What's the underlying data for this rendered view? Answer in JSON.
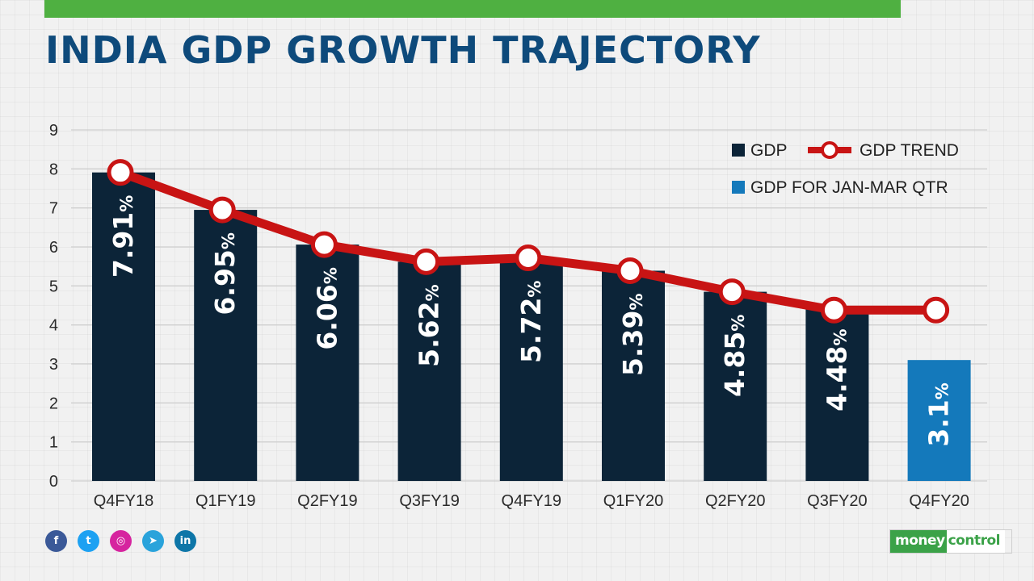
{
  "title": "INDIA GDP GROWTH TRAJECTORY",
  "colors": {
    "topbar": "#4fb041",
    "title": "#0e4a7b",
    "gdp_bar": "#0c2438",
    "highlight_bar": "#1479bb",
    "trend": "#c81414",
    "grid": "#cfcfcf"
  },
  "legend": {
    "gdp": "GDP",
    "trend": "GDP TREND",
    "highlight": "GDP FOR JAN-MAR QTR"
  },
  "chart_data": {
    "type": "bar",
    "categories": [
      "Q4FY18",
      "Q1FY19",
      "Q2FY19",
      "Q3FY19",
      "Q4FY19",
      "Q1FY20",
      "Q2FY20",
      "Q3FY20",
      "Q4FY20"
    ],
    "series": [
      {
        "name": "GDP",
        "values": [
          7.91,
          6.95,
          6.06,
          5.62,
          5.72,
          5.39,
          4.85,
          4.48,
          3.1
        ],
        "labels": [
          "7.91",
          "6.95",
          "6.06",
          "5.62",
          "5.72",
          "5.39",
          "4.85",
          "4.48",
          "3.1"
        ],
        "highlight_index": 8
      },
      {
        "name": "GDP TREND",
        "type": "line",
        "values": [
          7.91,
          6.95,
          6.06,
          5.62,
          5.72,
          5.39,
          4.85,
          4.38,
          4.38
        ]
      }
    ],
    "unit_suffix": "%",
    "yticks": [
      0,
      1,
      2,
      3,
      4,
      5,
      6,
      7,
      8,
      9
    ],
    "ylim": [
      0,
      9
    ],
    "grid": true,
    "legend_position": "top-right"
  },
  "social": [
    {
      "name": "facebook",
      "glyph": "f",
      "color": "#3b5998"
    },
    {
      "name": "twitter",
      "glyph": "t",
      "color": "#1da1f2"
    },
    {
      "name": "instagram",
      "glyph": "◎",
      "color": "#d6249f"
    },
    {
      "name": "telegram",
      "glyph": "➤",
      "color": "#2aa3db"
    },
    {
      "name": "linkedin",
      "glyph": "in",
      "color": "#0e76a8"
    }
  ],
  "brand": {
    "part1": "money",
    "part2": "control"
  }
}
